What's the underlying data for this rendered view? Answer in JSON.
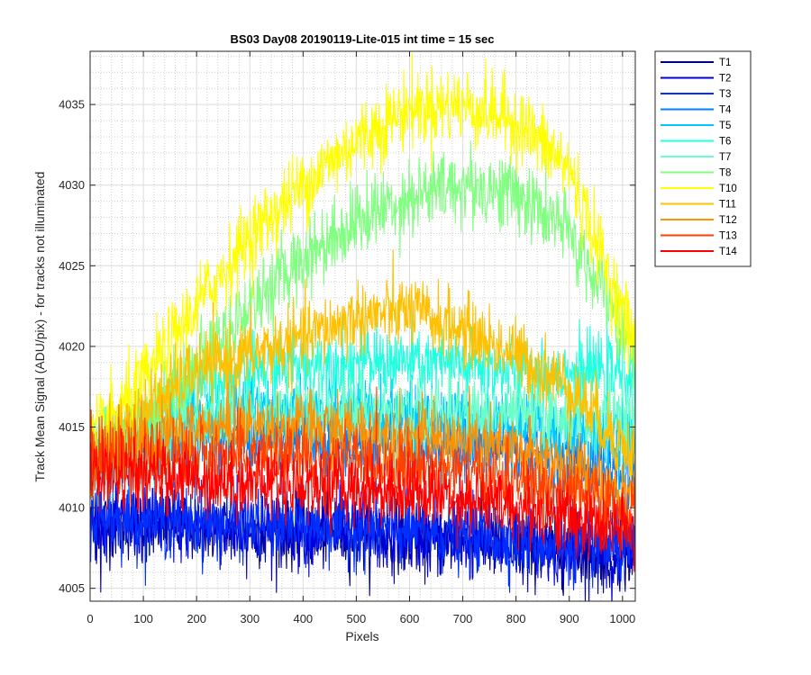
{
  "chart_data": {
    "type": "line",
    "title": "BS03 Day08 20190119-Lite-015 int time = 15 sec",
    "xlabel": "Pixels",
    "ylabel": "Track Mean Signal (ADU/pix) - for tracks not illuminated",
    "xlim": [
      0,
      1024
    ],
    "ylim": [
      4004.2,
      4038.3
    ],
    "xticks": [
      0,
      100,
      200,
      300,
      400,
      500,
      600,
      700,
      800,
      900,
      1000
    ],
    "xtick_labels": [
      "0",
      "100",
      "200",
      "300",
      "400",
      "500",
      "600",
      "700",
      "800",
      "900",
      "1000"
    ],
    "yticks": [
      4005,
      4010,
      4015,
      4020,
      4025,
      4030,
      4035
    ],
    "ytick_labels": [
      "4005",
      "4010",
      "4015",
      "4020",
      "4025",
      "4030",
      "4035"
    ],
    "grid": "major and minor",
    "legend_position": "outside-right-top",
    "x": [
      0,
      100,
      200,
      300,
      400,
      500,
      600,
      700,
      800,
      900,
      1024
    ],
    "series": [
      {
        "name": "T1",
        "color": "#00008f",
        "noise": 1.1,
        "values": [
          4009.0,
          4008.9,
          4008.7,
          4008.6,
          4008.5,
          4008.3,
          4008.1,
          4007.9,
          4007.6,
          4007.3,
          4007.0
        ]
      },
      {
        "name": "T2",
        "color": "#0000d9",
        "noise": 1.1,
        "values": [
          4009.2,
          4009.0,
          4008.8,
          4008.7,
          4008.6,
          4008.4,
          4008.2,
          4008.0,
          4007.7,
          4007.4,
          4007.1
        ]
      },
      {
        "name": "T3",
        "color": "#0030ff",
        "noise": 1.1,
        "values": [
          4009.5,
          4009.3,
          4009.1,
          4009.0,
          4008.9,
          4008.7,
          4008.5,
          4008.3,
          4008.0,
          4007.7,
          4007.4
        ]
      },
      {
        "name": "T4",
        "color": "#0080ff",
        "noise": 1.1,
        "values": [
          4012.0,
          4013.5,
          4014.2,
          4014.5,
          4014.4,
          4014.2,
          4014.0,
          4013.8,
          4013.6,
          4013.0,
          4012.0
        ]
      },
      {
        "name": "T5",
        "color": "#00c8ff",
        "noise": 1.1,
        "values": [
          4012.2,
          4014.0,
          4015.5,
          4016.0,
          4016.0,
          4015.8,
          4015.6,
          4015.4,
          4015.2,
          4014.8,
          4014.0
        ]
      },
      {
        "name": "T6",
        "color": "#20ffdf",
        "noise": 1.1,
        "values": [
          4013.0,
          4015.0,
          4017.3,
          4018.5,
          4019.0,
          4019.0,
          4019.0,
          4018.8,
          4018.6,
          4018.4,
          4018.5
        ]
      },
      {
        "name": "T7",
        "color": "#6affc8",
        "noise": 1.1,
        "values": [
          4013.0,
          4014.0,
          4015.0,
          4015.8,
          4016.0,
          4016.0,
          4015.9,
          4015.8,
          4015.7,
          4015.6,
          4015.5
        ]
      },
      {
        "name": "T8",
        "color": "#80ff80",
        "noise": 1.2,
        "values": [
          4013.0,
          4015.5,
          4018.8,
          4022.5,
          4025.5,
          4027.8,
          4029.3,
          4030.0,
          4029.5,
          4027.0,
          4020.0
        ]
      },
      {
        "name": "T10",
        "color": "#ffff00",
        "noise": 1.2,
        "values": [
          4014.0,
          4017.8,
          4022.5,
          4026.8,
          4030.0,
          4032.8,
          4034.8,
          4035.0,
          4034.0,
          4031.0,
          4020.0
        ]
      },
      {
        "name": "T11",
        "color": "#ffc000",
        "noise": 1.1,
        "values": [
          4013.0,
          4016.0,
          4018.5,
          4019.5,
          4020.5,
          4021.8,
          4022.2,
          4021.0,
          4019.5,
          4017.5,
          4013.0
        ]
      },
      {
        "name": "T12",
        "color": "#ff9000",
        "noise": 1.1,
        "values": [
          4012.5,
          4014.0,
          4014.8,
          4015.0,
          4014.9,
          4014.7,
          4014.4,
          4014.0,
          4013.5,
          4012.5,
          4011.0
        ]
      },
      {
        "name": "T13",
        "color": "#ff4000",
        "noise": 1.1,
        "values": [
          4012.8,
          4013.0,
          4013.2,
          4013.2,
          4013.1,
          4012.9,
          4012.6,
          4012.2,
          4011.6,
          4010.8,
          4009.8
        ]
      },
      {
        "name": "T14",
        "color": "#ff0000",
        "noise": 1.1,
        "values": [
          4012.2,
          4012.0,
          4011.8,
          4011.6,
          4011.4,
          4011.2,
          4011.0,
          4010.6,
          4010.0,
          4009.3,
          4008.3
        ]
      }
    ]
  }
}
